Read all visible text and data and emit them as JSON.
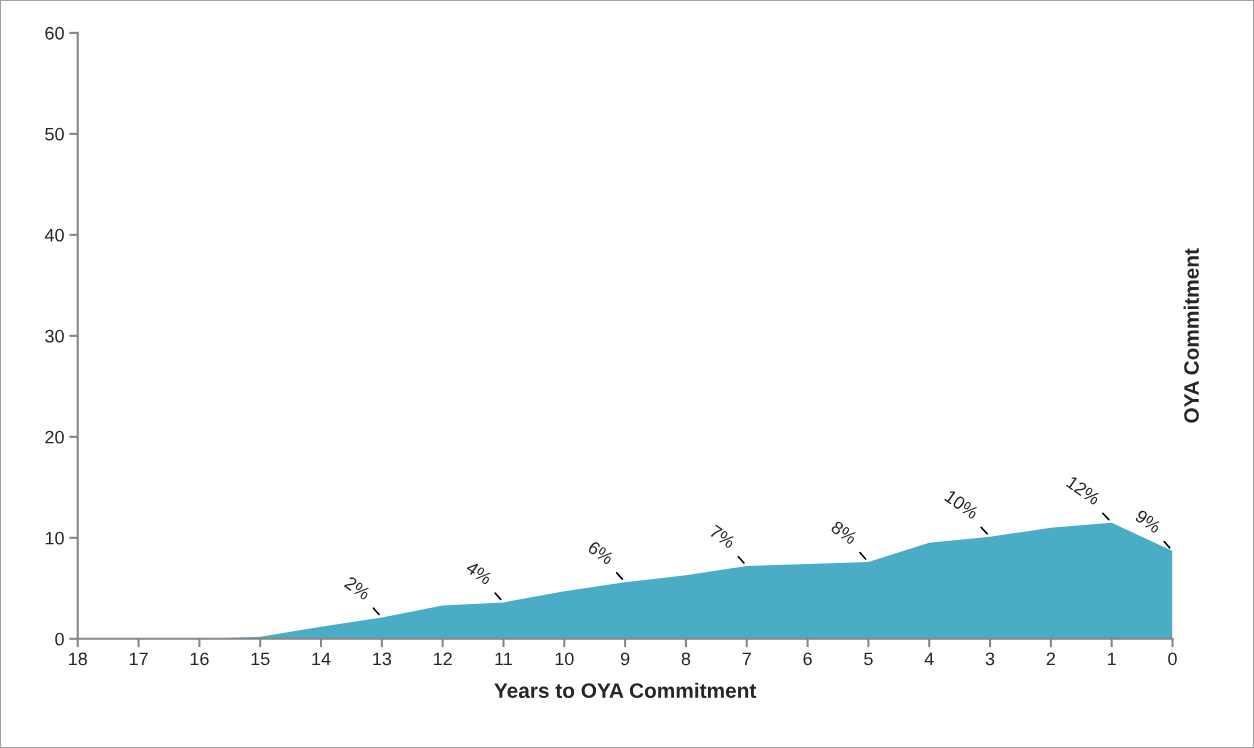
{
  "chart_data": {
    "type": "area",
    "xlabel": "Years to OYA Commitment",
    "ylabel": "OYA Commitment",
    "categories": [
      "18",
      "17",
      "16",
      "15",
      "14",
      "13",
      "12",
      "11",
      "10",
      "9",
      "8",
      "7",
      "6",
      "5",
      "4",
      "3",
      "2",
      "1",
      "0"
    ],
    "values": [
      0,
      0,
      0,
      0.2,
      1.2,
      2.1,
      3.3,
      3.6,
      4.7,
      5.6,
      6.3,
      7.2,
      7.4,
      7.6,
      9.5,
      10.1,
      11,
      11.5,
      8.7
    ],
    "color": "#4bacc6",
    "ylim": [
      0,
      60
    ],
    "yticks": [
      0,
      10,
      20,
      30,
      40,
      50,
      60
    ],
    "grid": false,
    "legend": false,
    "annotations": [
      {
        "text": "2%",
        "x": "13",
        "y": 2.1
      },
      {
        "text": "4%",
        "x": "11",
        "y": 3.6
      },
      {
        "text": "6%",
        "x": "9",
        "y": 5.6
      },
      {
        "text": "7%",
        "x": "7",
        "y": 7.2
      },
      {
        "text": "8%",
        "x": "5",
        "y": 7.6
      },
      {
        "text": "10%",
        "x": "3",
        "y": 10.1
      },
      {
        "text": "12%",
        "x": "1",
        "y": 11.5
      },
      {
        "text": "9%",
        "x": "0",
        "y": 8.7
      }
    ]
  }
}
